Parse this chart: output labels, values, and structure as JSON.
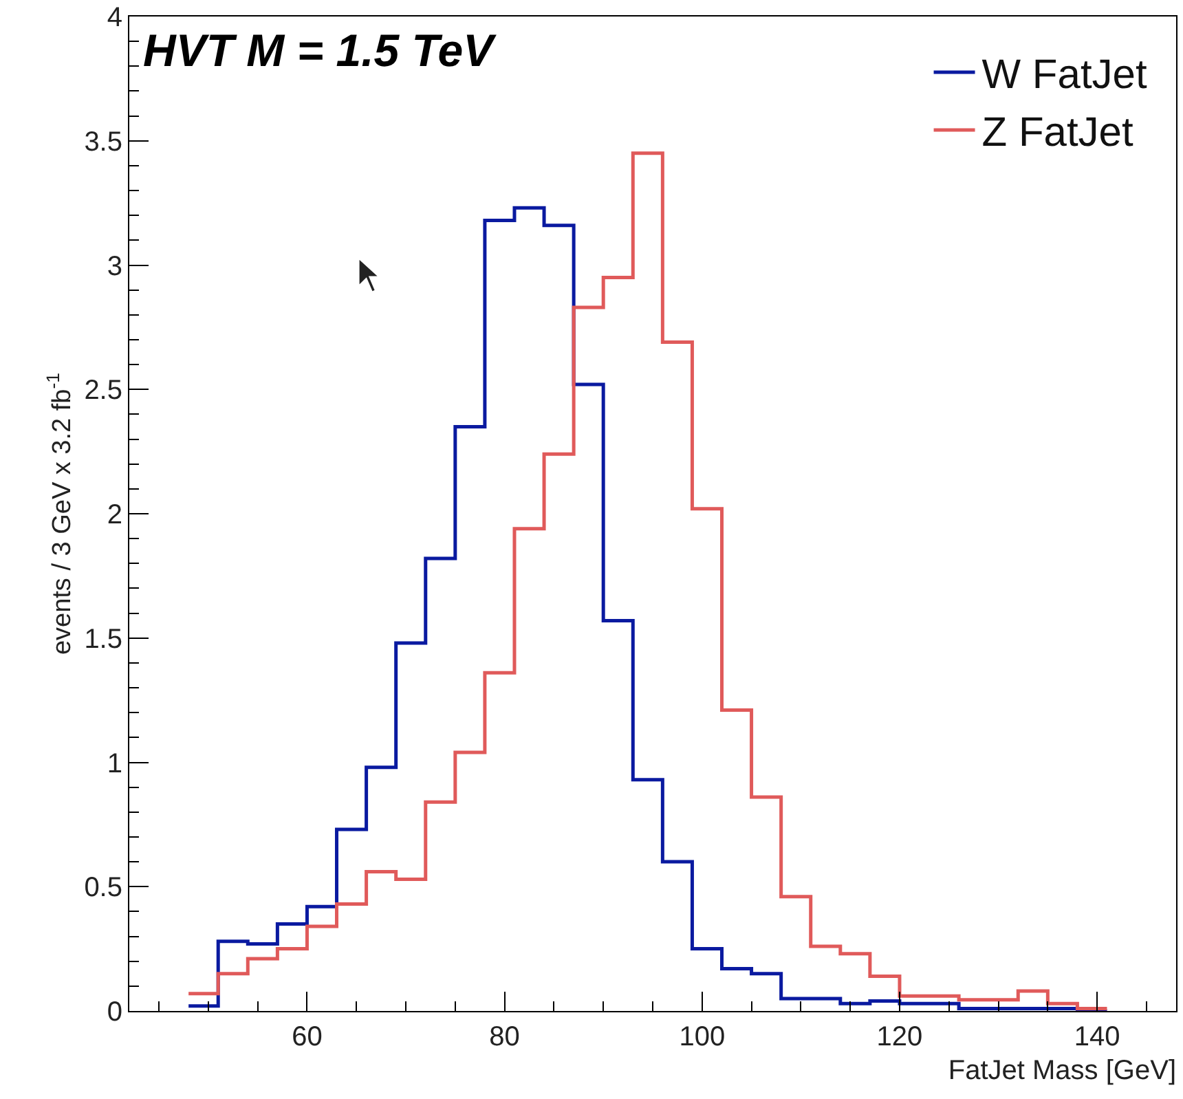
{
  "chart_data": {
    "type": "histogram",
    "title": "HVT M = 1.5 TeV",
    "xlabel": "FatJet Mass [GeV]",
    "ylabel": "events / 3 GeV x 3.2 fb$^{-1}$",
    "bins": [
      48,
      51,
      54,
      57,
      60,
      63,
      66,
      69,
      72,
      75,
      78,
      81,
      84,
      87,
      90,
      93,
      96,
      99,
      102,
      105,
      108,
      111,
      114,
      117,
      120,
      123,
      126,
      129,
      132,
      135,
      138,
      141
    ],
    "series": [
      {
        "name": "W FatJet",
        "color": "#0a1aa0",
        "values": [
          0.02,
          0.28,
          0.27,
          0.35,
          0.42,
          0.73,
          0.98,
          1.48,
          1.82,
          2.35,
          3.18,
          3.23,
          3.16,
          2.52,
          1.57,
          0.93,
          0.6,
          0.25,
          0.17,
          0.15,
          0.05,
          0.05,
          0.03,
          0.04,
          0.03,
          0.03,
          0.01,
          0.01,
          0.01,
          0.01,
          0
        ]
      },
      {
        "name": "Z FatJet",
        "color": "#e05a5a",
        "values": [
          0.07,
          0.15,
          0.21,
          0.25,
          0.34,
          0.43,
          0.56,
          0.53,
          0.84,
          1.04,
          1.36,
          1.94,
          2.24,
          2.83,
          2.95,
          3.45,
          2.69,
          2.02,
          1.21,
          0.86,
          0.46,
          0.26,
          0.23,
          0.14,
          0.06,
          0.06,
          0.045,
          0.045,
          0.08,
          0.03,
          0.01
        ]
      }
    ],
    "xlim": [
      42,
      148
    ],
    "xticks": [
      60,
      80,
      100,
      120,
      140
    ],
    "ylim": [
      0,
      4
    ],
    "yticks": [
      0,
      0.5,
      1,
      1.5,
      2,
      2.5,
      3,
      3.5,
      4
    ],
    "grid": false,
    "legend": "top right"
  }
}
